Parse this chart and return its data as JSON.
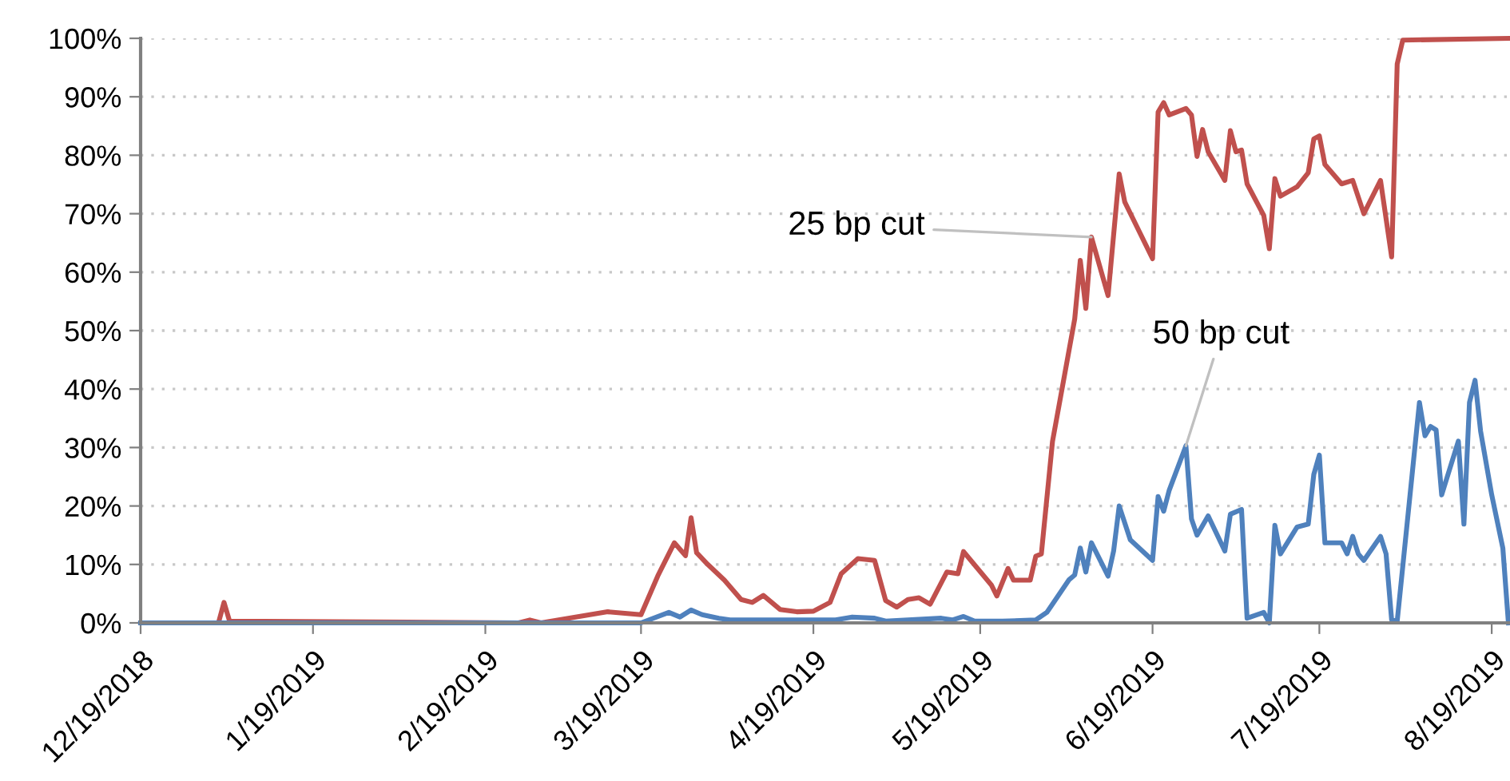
{
  "chart_data": {
    "type": "line",
    "xlim": [
      "2018-12-19",
      "2019-08-22"
    ],
    "xticks": [
      {
        "value": "2018-12-19",
        "label": "12/19/2018"
      },
      {
        "value": "2019-01-19",
        "label": "1/19/2019"
      },
      {
        "value": "2019-02-19",
        "label": "2/19/2019"
      },
      {
        "value": "2019-03-19",
        "label": "3/19/2019"
      },
      {
        "value": "2019-04-19",
        "label": "4/19/2019"
      },
      {
        "value": "2019-05-19",
        "label": "5/19/2019"
      },
      {
        "value": "2019-06-19",
        "label": "6/19/2019"
      },
      {
        "value": "2019-07-19",
        "label": "7/19/2019"
      },
      {
        "value": "2019-08-19",
        "label": "8/19/2019"
      }
    ],
    "ylim": [
      0,
      100
    ],
    "yticks": [
      {
        "value": 0,
        "label": "0%"
      },
      {
        "value": 10,
        "label": "10%"
      },
      {
        "value": 20,
        "label": "20%"
      },
      {
        "value": 30,
        "label": "30%"
      },
      {
        "value": 40,
        "label": "40%"
      },
      {
        "value": 50,
        "label": "50%"
      },
      {
        "value": 60,
        "label": "60%"
      },
      {
        "value": 70,
        "label": "70%"
      },
      {
        "value": 80,
        "label": "80%"
      },
      {
        "value": 90,
        "label": "90%"
      },
      {
        "value": 100,
        "label": "100%"
      }
    ],
    "grid": "y",
    "line_style": "solid",
    "marker": "none",
    "series": [
      {
        "color": "#c0504d",
        "x": [
          "2018-12-19",
          "2019-01-02",
          "2019-01-03",
          "2019-01-04",
          "2019-02-25",
          "2019-02-27",
          "2019-03-01",
          "2019-03-13",
          "2019-03-19",
          "2019-03-22",
          "2019-03-25",
          "2019-03-27",
          "2019-03-28",
          "2019-03-29",
          "2019-03-31",
          "2019-04-03",
          "2019-04-06",
          "2019-04-08",
          "2019-04-10",
          "2019-04-13",
          "2019-04-16",
          "2019-04-19",
          "2019-04-22",
          "2019-04-24",
          "2019-04-27",
          "2019-04-30",
          "2019-05-02",
          "2019-05-04",
          "2019-05-06",
          "2019-05-08",
          "2019-05-10",
          "2019-05-13",
          "2019-05-15",
          "2019-05-16",
          "2019-05-21",
          "2019-05-22",
          "2019-05-24",
          "2019-05-25",
          "2019-05-28",
          "2019-05-29",
          "2019-05-30",
          "2019-06-01",
          "2019-06-05",
          "2019-06-06",
          "2019-06-07",
          "2019-06-08",
          "2019-06-11",
          "2019-06-13",
          "2019-06-14",
          "2019-06-19",
          "2019-06-20",
          "2019-06-21",
          "2019-06-22",
          "2019-06-25",
          "2019-06-26",
          "2019-06-27",
          "2019-06-28",
          "2019-06-29",
          "2019-07-02",
          "2019-07-03",
          "2019-07-04",
          "2019-07-05",
          "2019-07-06",
          "2019-07-09",
          "2019-07-10",
          "2019-07-11",
          "2019-07-12",
          "2019-07-15",
          "2019-07-17",
          "2019-07-18",
          "2019-07-19",
          "2019-07-20",
          "2019-07-23",
          "2019-07-25",
          "2019-07-27",
          "2019-07-30",
          "2019-08-01",
          "2019-08-02",
          "2019-08-03",
          "2019-08-22"
        ],
        "values": [
          0,
          0,
          3.5,
          0.3,
          0,
          0.5,
          0,
          1.9,
          1.4,
          8,
          13.7,
          11.5,
          18,
          12,
          10,
          7.3,
          4,
          3.5,
          4.7,
          2.3,
          1.9,
          2,
          3.5,
          8.4,
          11,
          10.7,
          3.8,
          2.7,
          4,
          4.3,
          3.2,
          8.7,
          8.4,
          12.2,
          6.5,
          4.6,
          9.3,
          7.3,
          7.3,
          11.4,
          11.8,
          31,
          52,
          62,
          53.8,
          66,
          56,
          76.8,
          72,
          62.3,
          87.4,
          89,
          86.9,
          88,
          86.9,
          79.8,
          84.4,
          80.6,
          75.7,
          84.2,
          80.6,
          80.9,
          75.1,
          69.7,
          64,
          76,
          73,
          74.6,
          77,
          82.8,
          83.3,
          78.4,
          75.1,
          75.7,
          70,
          75.7,
          62.6,
          95.6,
          99.7,
          100
        ]
      },
      {
        "color": "#4f81bd",
        "x": [
          "2018-12-19",
          "2019-03-19",
          "2019-03-24",
          "2019-03-26",
          "2019-03-28",
          "2019-03-30",
          "2019-04-02",
          "2019-04-04",
          "2019-04-23",
          "2019-04-26",
          "2019-04-30",
          "2019-05-02",
          "2019-05-12",
          "2019-05-14",
          "2019-05-16",
          "2019-05-18",
          "2019-05-23",
          "2019-05-29",
          "2019-05-31",
          "2019-06-04",
          "2019-06-05",
          "2019-06-06",
          "2019-06-07",
          "2019-06-08",
          "2019-06-11",
          "2019-06-12",
          "2019-06-13",
          "2019-06-15",
          "2019-06-19",
          "2019-06-20",
          "2019-06-21",
          "2019-06-22",
          "2019-06-25",
          "2019-06-26",
          "2019-06-27",
          "2019-06-29",
          "2019-07-02",
          "2019-07-03",
          "2019-07-05",
          "2019-07-06",
          "2019-07-09",
          "2019-07-10",
          "2019-07-11",
          "2019-07-12",
          "2019-07-15",
          "2019-07-17",
          "2019-07-18",
          "2019-07-19",
          "2019-07-20",
          "2019-07-23",
          "2019-07-24",
          "2019-07-25",
          "2019-07-26",
          "2019-07-27",
          "2019-07-30",
          "2019-07-31",
          "2019-08-01",
          "2019-08-02",
          "2019-08-06",
          "2019-08-07",
          "2019-08-08",
          "2019-08-09",
          "2019-08-10",
          "2019-08-13",
          "2019-08-14",
          "2019-08-15",
          "2019-08-16",
          "2019-08-17",
          "2019-08-19",
          "2019-08-21",
          "2019-08-22"
        ],
        "values": [
          0,
          0,
          1.8,
          1,
          2.2,
          1.4,
          0.8,
          0.5,
          0.5,
          1,
          0.8,
          0.3,
          0.8,
          0.5,
          1.1,
          0.3,
          0.3,
          0.5,
          1.8,
          7.4,
          8.2,
          12.8,
          8.7,
          13.7,
          8,
          12.3,
          20,
          14.2,
          10.7,
          21.6,
          19.1,
          22.7,
          30.3,
          17.8,
          15,
          18.3,
          12.3,
          18.6,
          19.4,
          0.8,
          1.8,
          0,
          16.7,
          11.8,
          16.4,
          16.9,
          25.4,
          28.7,
          13.7,
          13.7,
          11.8,
          14.8,
          11.8,
          10.7,
          14.8,
          11.8,
          0.5,
          0.3,
          37.7,
          32,
          33.6,
          33,
          21.9,
          31.1,
          16.9,
          37.7,
          41.5,
          32.8,
          21.9,
          12.8,
          0
        ]
      }
    ],
    "annotations": [
      {
        "text": "25 bp cut",
        "x": "2019-06-08",
        "y": 66
      },
      {
        "text": "50 bp cut",
        "x": "2019-06-25",
        "y": 30.3
      }
    ]
  }
}
